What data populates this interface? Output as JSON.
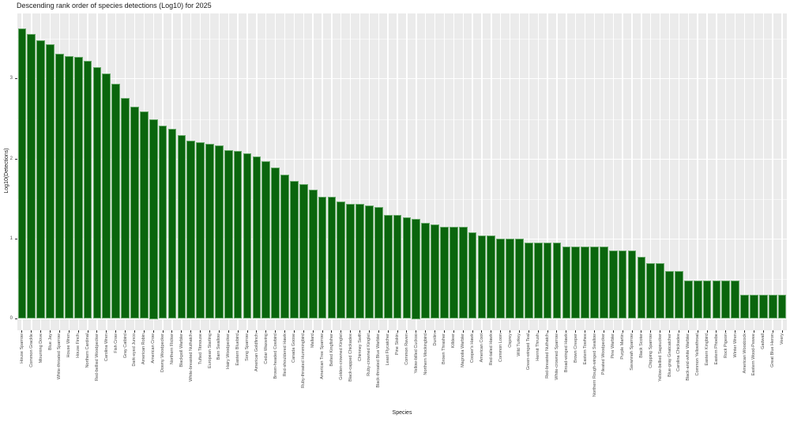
{
  "title": "Descending rank order of species detections (Log10) for 2025",
  "axes": {
    "x_label": "Species",
    "y_label": "Log10(Detections)",
    "y_ticks": [
      "0",
      "1",
      "2",
      "3"
    ]
  },
  "colors": {
    "bar_fill": "#0a650d",
    "bar_stroke": "#6aab6c",
    "panel_bg": "#ebebeb",
    "grid": "#ffffff",
    "axis_text": "#4d4d4d",
    "title_text": "#1a1a1a"
  },
  "chart_data": {
    "type": "bar",
    "title": "Descending rank order of species detections (Log10) for 2025",
    "xlabel": "Species",
    "ylabel": "Log10(Detections)",
    "ylim": [
      0,
      3.8
    ],
    "grid": true,
    "legend": false,
    "categories": [
      "House Sparrow",
      "Common Grackle",
      "Mourning Dove",
      "Blue Jay",
      "White-throated Sparrow",
      "House Wren",
      "House Finch",
      "Northern Cardinal",
      "Red-bellied Woodpecker",
      "Carolina Wren",
      "Fish Crow",
      "Gray Catbird",
      "Dark-eyed Junco",
      "American Robin",
      "American Crow",
      "Downy Woodpecker",
      "Northern Flicker",
      "Blackpoll Warbler",
      "White-breasted Nuthatch",
      "Tufted Titmouse",
      "European Starling",
      "Barn Swallow",
      "Hairy Woodpecker",
      "Eastern Bluebird",
      "Song Sparrow",
      "American Goldfinch",
      "Cedar Waxwing",
      "Brown-headed Cowbird",
      "Red-shouldered Hawk",
      "Canada Goose",
      "Ruby-throated Hummingbird",
      "Mallard",
      "American Tree Sparrow",
      "Belted Kingfisher",
      "Golden-crowned Kinglet",
      "Black-capped Chickadee",
      "Chimney Swift",
      "Ruby-crowned Kinglet",
      "Black-throated Blue Warbler",
      "Least Flycatcher",
      "Pine Siskin",
      "Common Raven",
      "Yellow-billed Cuckoo",
      "Northern Mockingbird",
      "Dunlin",
      "Brown Thrasher",
      "Killdeer",
      "Magnolia Warbler",
      "Cooper's Hawk",
      "American Coot",
      "Red-tailed Hawk",
      "Common Loon",
      "Osprey",
      "Wild Turkey",
      "Green-winged Teal",
      "Hermit Thrush",
      "Red-breasted Nuthatch",
      "White-crowned Sparrow",
      "Broad-winged Hawk",
      "Brown Creeper",
      "Eastern Towhee",
      "Northern Rough-winged Swallow",
      "Pileated Woodpecker",
      "Pine Warbler",
      "Purple Martin",
      "Savannah Sparrow",
      "Black Scoter",
      "Chipping Sparrow",
      "Yellow-bellied Sapsucker",
      "Blue-gray Gnatcatcher",
      "Carolina Chickadee",
      "Black-and-white Warbler",
      "Common Yellowthroat",
      "Eastern Kingbird",
      "Eastern Phoebe",
      "Rock Pigeon",
      "Winter Wren",
      "American Woodcock",
      "Eastern Wood-Pewee",
      "Gadwall",
      "Great Blue Heron",
      "Veery"
    ],
    "values": [
      3.63,
      3.56,
      3.48,
      3.43,
      3.32,
      3.29,
      3.28,
      3.23,
      3.15,
      3.07,
      2.94,
      2.76,
      2.65,
      2.59,
      2.5,
      2.42,
      2.38,
      2.3,
      2.23,
      2.21,
      2.19,
      2.17,
      2.11,
      2.1,
      2.07,
      2.03,
      1.97,
      1.89,
      1.8,
      1.72,
      1.68,
      1.62,
      1.53,
      1.53,
      1.47,
      1.44,
      1.44,
      1.42,
      1.4,
      1.3,
      1.3,
      1.27,
      1.25,
      1.2,
      1.18,
      1.15,
      1.15,
      1.15,
      1.08,
      1.04,
      1.04,
      1.0,
      1.0,
      1.0,
      0.95,
      0.95,
      0.95,
      0.95,
      0.9,
      0.9,
      0.9,
      0.9,
      0.9,
      0.85,
      0.85,
      0.85,
      0.78,
      0.7,
      0.7,
      0.6,
      0.6,
      0.48,
      0.48,
      0.48,
      0.48,
      0.48,
      0.48,
      0.3,
      0.3,
      0.3,
      0.3,
      0.3
    ]
  }
}
